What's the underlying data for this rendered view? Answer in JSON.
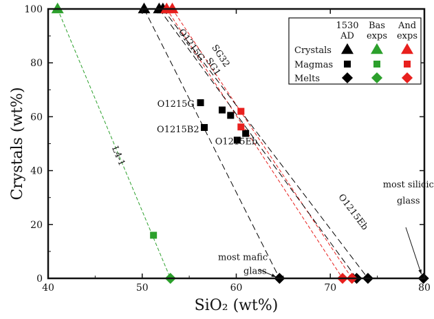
{
  "chart_data": {
    "type": "scatter",
    "xlabel": "SiO₂ (wt%)",
    "ylabel": "Crystals (wt%)",
    "xlim": [
      40,
      80
    ],
    "ylim": [
      0,
      100
    ],
    "x_ticks": [
      40,
      50,
      60,
      70,
      80
    ],
    "y_ticks": [
      0,
      20,
      40,
      60,
      80,
      100
    ],
    "grid": false,
    "legend": {
      "placement": "top-right",
      "columns": [
        "1530 AD",
        "Bas exps",
        "And exps"
      ],
      "rows": [
        "Crystals",
        "Magmas",
        "Melts"
      ],
      "column_colors": [
        "#000000",
        "#2ca02c",
        "#e8201e"
      ],
      "row_markers": [
        "triangle",
        "square",
        "diamond"
      ]
    },
    "series": [
      {
        "name": "1530 AD Crystals",
        "color": "#000000",
        "marker": "triangle",
        "points": [
          {
            "x": 50.2,
            "y": 100
          },
          {
            "x": 51.8,
            "y": 100
          },
          {
            "x": 52.2,
            "y": 100
          }
        ]
      },
      {
        "name": "1530 AD Magmas",
        "color": "#000000",
        "marker": "square",
        "points": [
          {
            "x": 56.2,
            "y": 65.2
          },
          {
            "x": 56.6,
            "y": 56
          },
          {
            "x": 58.5,
            "y": 62.5
          },
          {
            "x": 59.4,
            "y": 60.5
          },
          {
            "x": 60.1,
            "y": 51.3
          },
          {
            "x": 61.0,
            "y": 53.8
          }
        ]
      },
      {
        "name": "1530 AD Melts",
        "color": "#000000",
        "marker": "diamond",
        "points": [
          {
            "x": 64.6,
            "y": 0
          },
          {
            "x": 72.8,
            "y": 0
          },
          {
            "x": 74.0,
            "y": 0
          },
          {
            "x": 79.9,
            "y": 0
          }
        ]
      },
      {
        "name": "Bas exps Crystals",
        "color": "#2ca02c",
        "marker": "triangle",
        "points": [
          {
            "x": 41.0,
            "y": 100
          }
        ]
      },
      {
        "name": "Bas exps Magmas",
        "color": "#2ca02c",
        "marker": "square",
        "points": [
          {
            "x": 51.2,
            "y": 16
          }
        ]
      },
      {
        "name": "Bas exps Melts",
        "color": "#2ca02c",
        "marker": "diamond",
        "points": [
          {
            "x": 53.0,
            "y": 0
          }
        ]
      },
      {
        "name": "And exps Crystals",
        "color": "#e8201e",
        "marker": "triangle",
        "points": [
          {
            "x": 52.6,
            "y": 100
          },
          {
            "x": 53.2,
            "y": 100
          }
        ]
      },
      {
        "name": "And exps Magmas",
        "color": "#e8201e",
        "marker": "square",
        "points": [
          {
            "x": 60.5,
            "y": 62
          },
          {
            "x": 60.5,
            "y": 56.2
          }
        ]
      },
      {
        "name": "And exps Melts",
        "color": "#e8201e",
        "marker": "diamond",
        "points": [
          {
            "x": 71.3,
            "y": 0
          },
          {
            "x": 72.3,
            "y": 0
          }
        ]
      }
    ],
    "tie_lines": [
      {
        "label": "L4-1",
        "color": "#2ca02c",
        "from": [
          41.0,
          100
        ],
        "to": [
          53.0,
          0
        ]
      },
      {
        "label": "SG32",
        "color": "#e8201e",
        "from": [
          53.2,
          100
        ],
        "to": [
          72.3,
          0
        ]
      },
      {
        "label": "SG1",
        "color": "#e8201e",
        "from": [
          52.6,
          100
        ],
        "to": [
          71.3,
          0
        ]
      },
      {
        "label": "O1215G",
        "color": "#000000",
        "from": [
          51.8,
          100
        ],
        "to": [
          72.8,
          0
        ]
      },
      {
        "label": "",
        "color": "#000000",
        "from": [
          50.2,
          100
        ],
        "to": [
          64.6,
          0
        ]
      },
      {
        "label": "O1215Eb",
        "color": "#000000",
        "from": [
          52.2,
          100
        ],
        "to": [
          74.0,
          0
        ]
      }
    ],
    "annotations": [
      {
        "text": "O1215G",
        "x": 56.0,
        "y": 65
      },
      {
        "text": "O1215B2",
        "x": 56.5,
        "y": 55.5
      },
      {
        "text": "O1215Eb",
        "x": 60.0,
        "y": 51
      },
      {
        "text": "most mafic",
        "x": 60.7,
        "y": 8
      },
      {
        "text": "glass",
        "x": 62.0,
        "y": 3
      },
      {
        "text": "most silicic",
        "x": 78.3,
        "y": 35
      },
      {
        "text": "glass",
        "x": 78.3,
        "y": 29
      }
    ]
  }
}
